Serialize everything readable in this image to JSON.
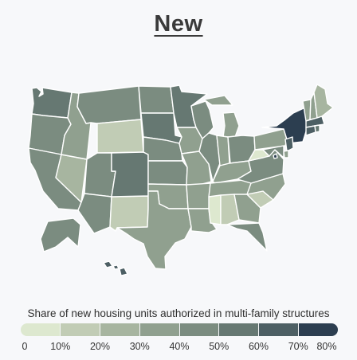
{
  "title": "New",
  "legend": {
    "title": "Share of new housing units authorized in multi-family structures",
    "bins": [
      "#dde8cf",
      "#c1ccb5",
      "#a7b5a0",
      "#90a08f",
      "#7b8c80",
      "#667872",
      "#4d5f64",
      "#2c3e50"
    ],
    "labels": [
      "0",
      "10%",
      "20%",
      "30%",
      "40%",
      "50%",
      "60%",
      "70%",
      "80%"
    ]
  },
  "map_data": {
    "type": "choropleth",
    "unit": "share of new housing units in multi-family structures (binned)",
    "states": {
      "WA": 5,
      "OR": 4,
      "CA": 4,
      "NV": 2,
      "ID": 3,
      "MT": 4,
      "WY": 1,
      "UT": 4,
      "AZ": 4,
      "NM": 1,
      "CO": 5,
      "ND": 4,
      "SD": 5,
      "NE": 4,
      "KS": 4,
      "OK": 3,
      "TX": 3,
      "MN": 5,
      "IA": 3,
      "MO": 3,
      "AR": 3,
      "LA": 3,
      "WI": 4,
      "IL": 4,
      "MI": 3,
      "IN": 3,
      "OH": 4,
      "KY": 3,
      "TN": 3,
      "MS": 0,
      "AL": 1,
      "GA": 3,
      "FL": 4,
      "SC": 1,
      "NC": 3,
      "VA": 4,
      "WV": 0,
      "PA": 3,
      "NY": 7,
      "VT": 3,
      "NH": 3,
      "ME": 2,
      "MA": 6,
      "RI": 5,
      "CT": 6,
      "NJ": 6,
      "DE": 3,
      "MD": 4,
      "DC": 7,
      "AK": 4,
      "HI": 6
    }
  }
}
